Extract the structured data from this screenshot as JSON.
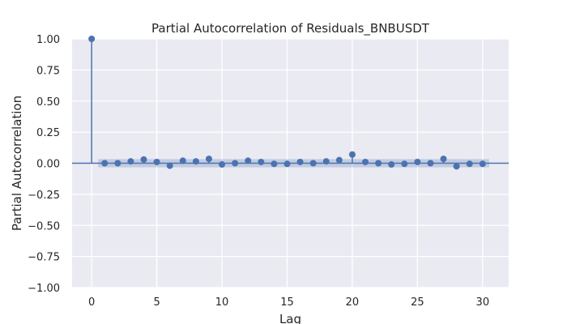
{
  "chart_data": {
    "type": "scatter",
    "title": "Partial Autocorrelation of Residuals_BNBUSDT",
    "xlabel": "Lag",
    "ylabel": "Partial Autocorrelation",
    "xlim": [
      -1.5,
      32
    ],
    "ylim": [
      -1.0,
      1.0
    ],
    "x_ticks": [
      0,
      5,
      10,
      15,
      20,
      25,
      30
    ],
    "x_tick_labels": [
      "0",
      "5",
      "10",
      "15",
      "20",
      "25",
      "30"
    ],
    "y_ticks": [
      1.0,
      0.75,
      0.5,
      0.25,
      0.0,
      -0.25,
      -0.5,
      -0.75,
      -1.0
    ],
    "y_tick_labels": [
      "1.00",
      "0.75",
      "0.50",
      "0.25",
      "0.00",
      "−0.25",
      "−0.50",
      "−0.75",
      "−1.00"
    ],
    "grid": true,
    "confidence_band": 0.033,
    "lags": [
      0,
      1,
      2,
      3,
      4,
      5,
      6,
      7,
      8,
      9,
      10,
      11,
      12,
      13,
      14,
      15,
      16,
      17,
      18,
      19,
      20,
      21,
      22,
      23,
      24,
      25,
      26,
      27,
      28,
      29,
      30
    ],
    "values": [
      1.0,
      0.0,
      0.0,
      0.015,
      0.03,
      0.01,
      -0.02,
      0.02,
      0.015,
      0.035,
      -0.01,
      0.0,
      0.02,
      0.01,
      -0.005,
      -0.005,
      0.01,
      0.0,
      0.015,
      0.025,
      0.07,
      0.01,
      0.0,
      -0.01,
      -0.005,
      0.01,
      0.0,
      0.035,
      -0.025,
      -0.005,
      -0.005
    ],
    "colors": {
      "series": "#4c72b0",
      "band": "#4c72b0",
      "background": "#eaeaf2",
      "grid": "#ffffff"
    }
  }
}
